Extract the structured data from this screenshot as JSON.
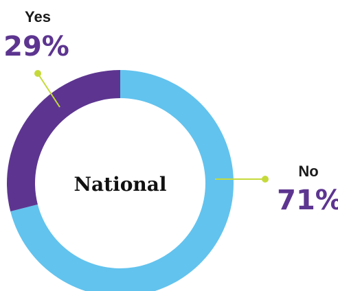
{
  "chart_data": {
    "type": "pie",
    "center_label": "National",
    "categories": [
      "No",
      "Yes"
    ],
    "values": [
      71,
      29
    ],
    "value_labels": [
      "71%",
      "29%"
    ],
    "colors": [
      "#62c3ee",
      "#5d3590"
    ],
    "label_color": "#5d3590",
    "leader_color": "#c5da3a",
    "start_angle_deg": 0,
    "direction": "clockwise"
  }
}
